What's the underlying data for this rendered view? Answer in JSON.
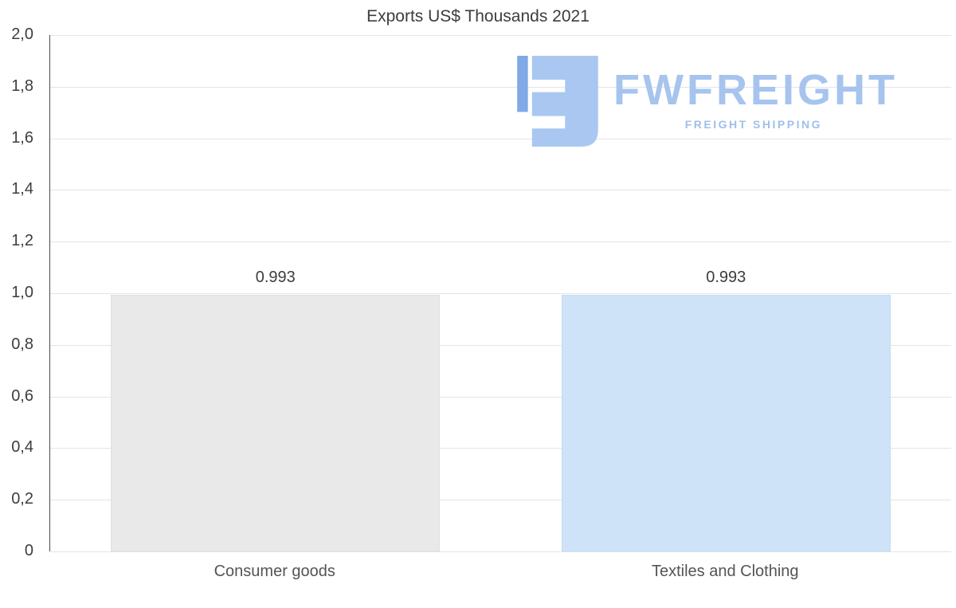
{
  "watermark": {
    "brand": "FWFREIGHT",
    "tagline": "FREIGHT SHIPPING",
    "brand_color": "#a6c4ee",
    "icon_light_color": "#a9c7f0",
    "icon_dark_color": "#80a9e6"
  },
  "chart_data": {
    "type": "bar",
    "title": "Exports US$ Thousands 2021",
    "categories": [
      "Consumer goods",
      "Textiles and Clothing"
    ],
    "values": [
      0.993,
      0.993
    ],
    "value_labels": [
      "0.993",
      "0.993"
    ],
    "bar_colors": [
      "#e9e9e9",
      "#cfe3f8"
    ],
    "bar_border_colors": [
      "#e0e0e0",
      "#c3dbf4"
    ],
    "xlabel": "",
    "ylabel": "",
    "ylim": [
      0,
      2.0
    ],
    "ytick_step": 0.2,
    "ytick_labels": [
      "0",
      "0,2",
      "0,4",
      "0,6",
      "0,8",
      "1,0",
      "1,2",
      "1,4",
      "1,6",
      "1,8",
      "2,0"
    ],
    "grid": true,
    "legend": false,
    "axis_text_color": "#3d3d3d",
    "category_text_color": "#545454",
    "gridline_color": "#e4e4e4"
  }
}
